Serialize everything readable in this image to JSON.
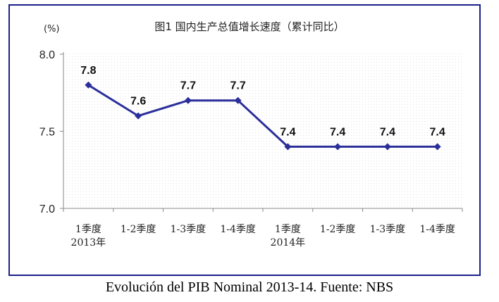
{
  "chart_data": {
    "type": "line",
    "title": "图1   国内生产总值增长速度（累计同比）",
    "ylabel": "(%)",
    "ylim": [
      7.0,
      8.0
    ],
    "yticks": [
      "8.0",
      "7.5",
      "7.0"
    ],
    "categories": [
      "1季度",
      "1-2季度",
      "1-3季度",
      "1-4季度",
      "1季度",
      "1-2季度",
      "1-3季度",
      "1-4季度"
    ],
    "year_labels": [
      "2013年",
      "2014年"
    ],
    "series": [
      {
        "name": "GDP growth",
        "values": [
          7.8,
          7.6,
          7.7,
          7.7,
          7.4,
          7.4,
          7.4,
          7.4
        ]
      }
    ],
    "data_labels": [
      "7.8",
      "7.6",
      "7.7",
      "7.7",
      "7.4",
      "7.4",
      "7.4",
      "7.4"
    ],
    "colors": {
      "line": "#2b2f9a",
      "frame": "#1b1f8a",
      "axis": "#8a8a8a"
    }
  },
  "caption": "Evolución del PIB Nominal 2013-14. Fuente: NBS"
}
